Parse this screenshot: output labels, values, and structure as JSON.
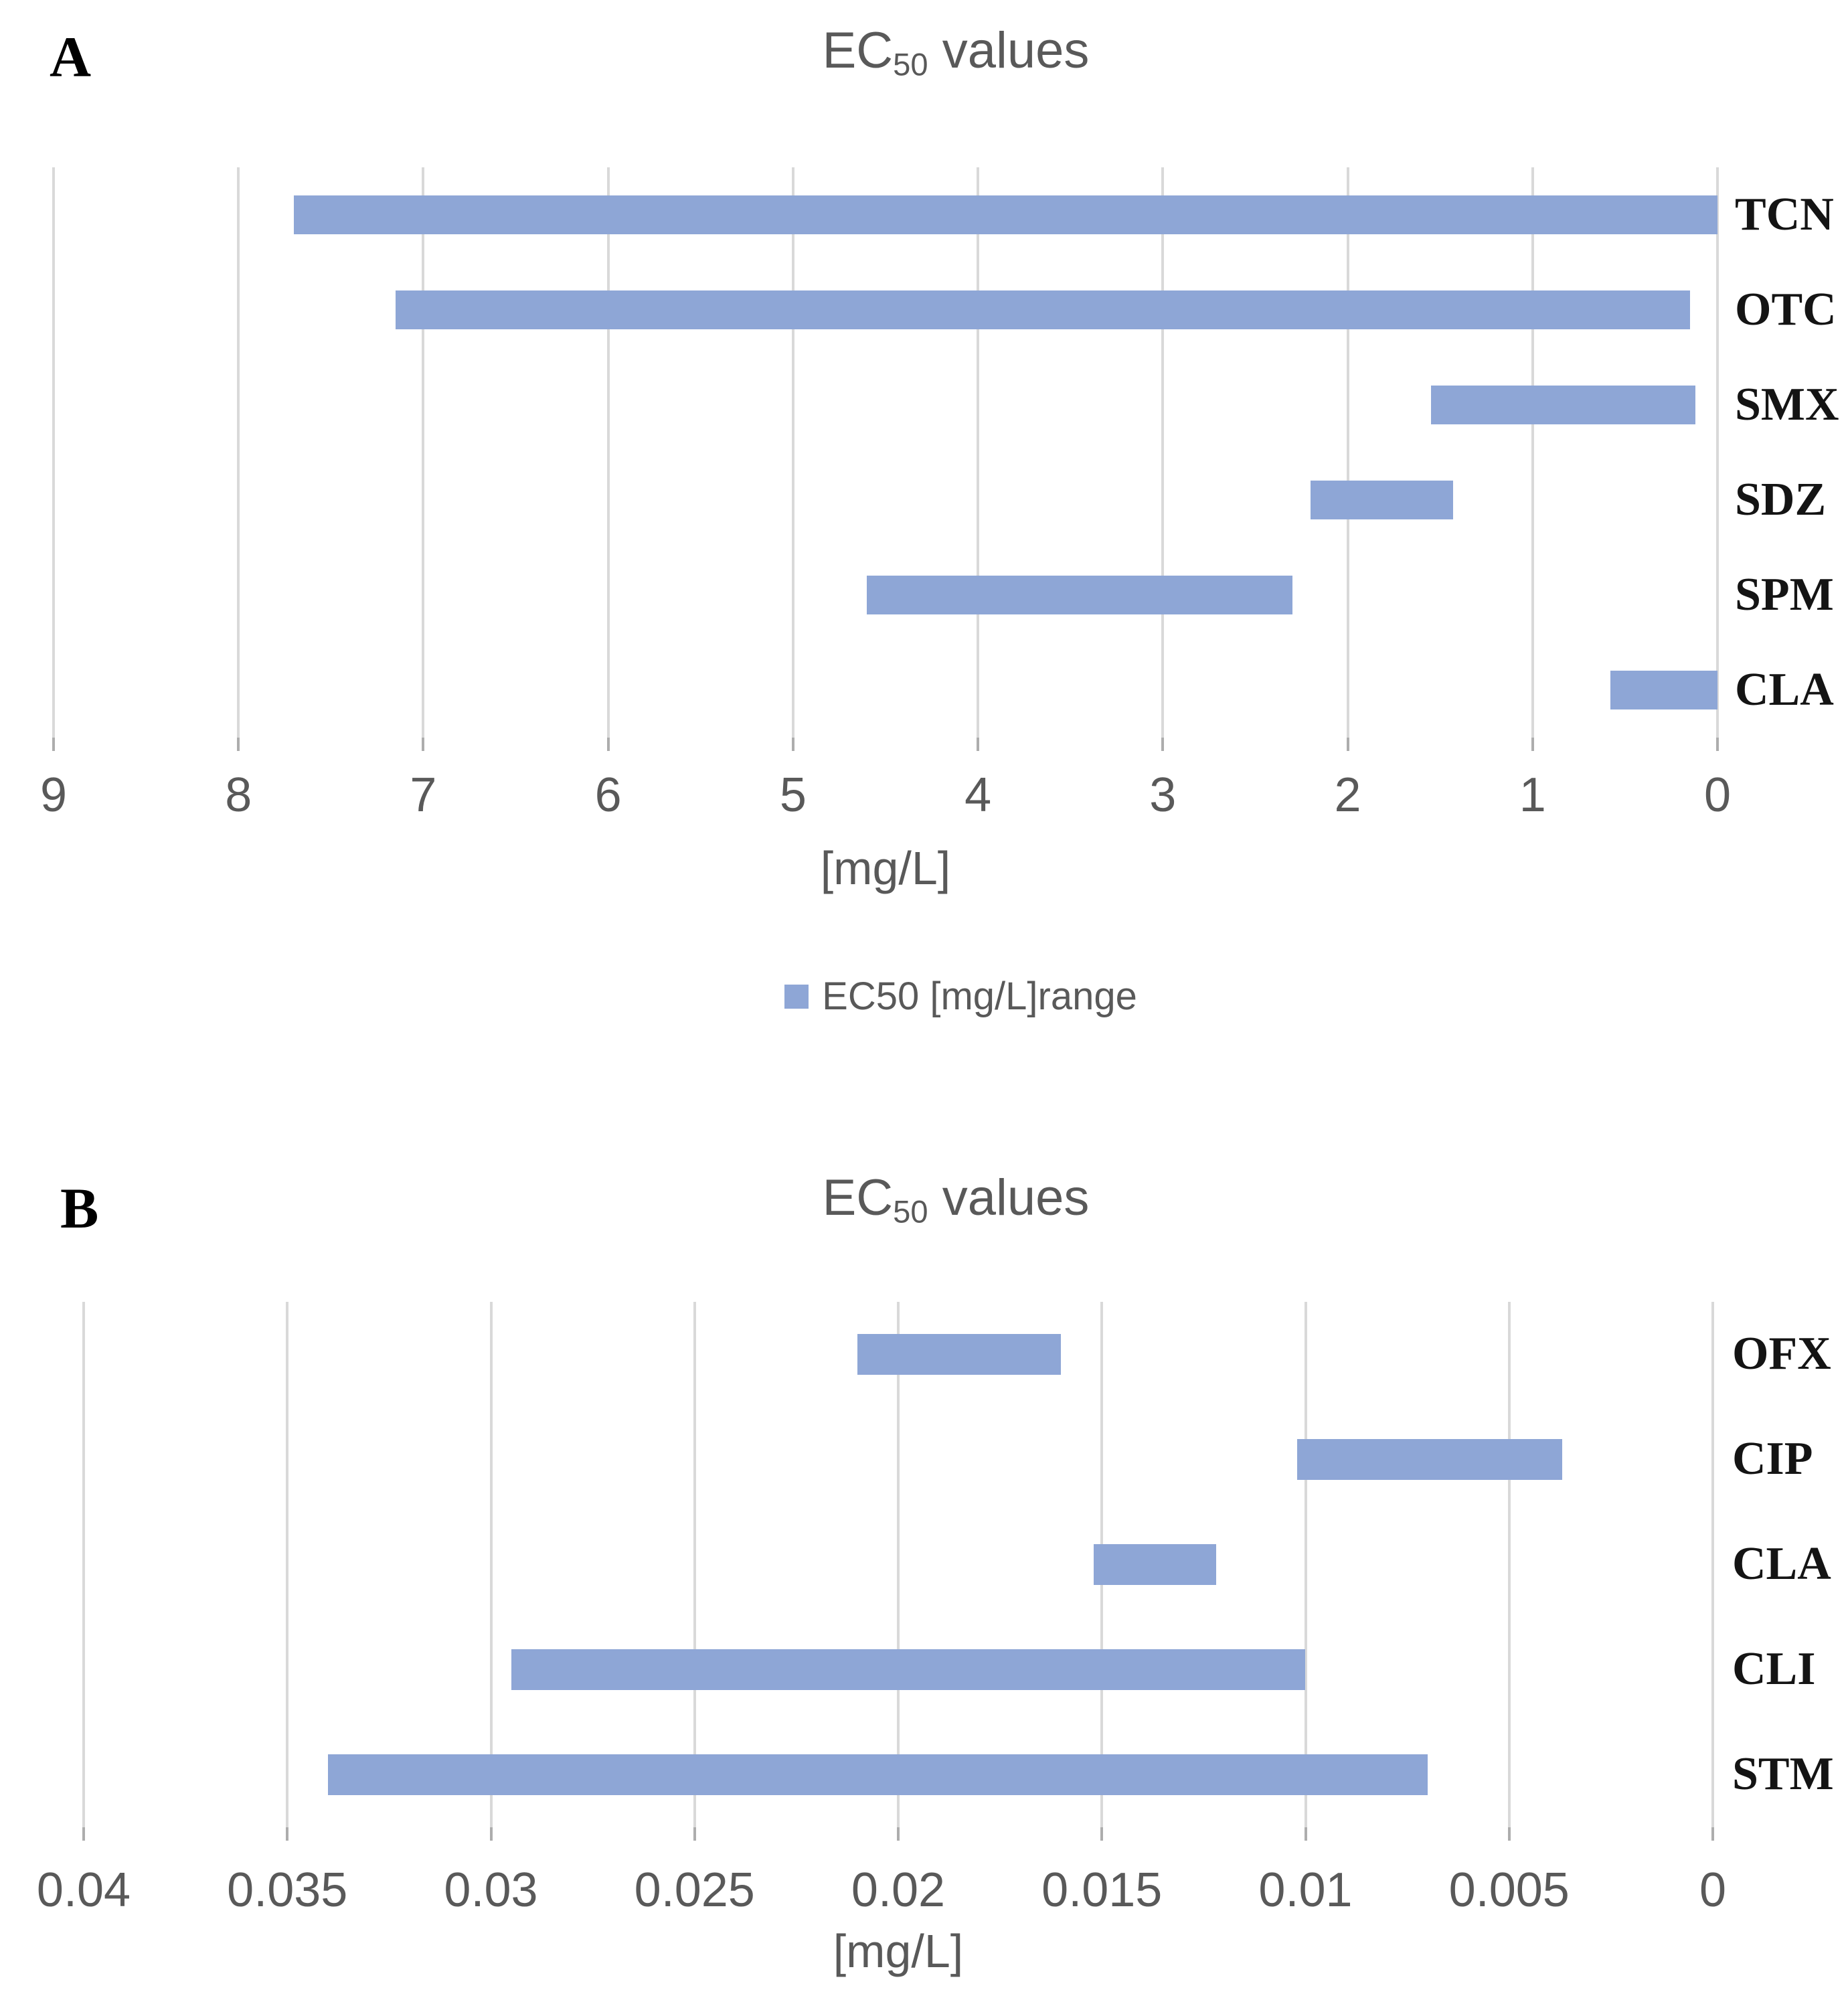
{
  "figure": {
    "background": "#ffffff",
    "bar_color": "#8EA6D6",
    "gridline_color": "#D9D9D9",
    "tick_mark_color": "#ADADAD",
    "axis_text_color": "#595959",
    "category_text_color": "#141414"
  },
  "chart_data": [
    {
      "type": "bar",
      "subtype": "horizontal-floating-range",
      "panel_label": "A",
      "title": "EC50 values",
      "title_parts": {
        "prefix": "EC",
        "sub": "50",
        "suffix": " values"
      },
      "xlabel": "[mg/L]",
      "legend": {
        "swatch_color": "#8EA6D6",
        "label": "EC50 [mg/L]range",
        "position": "bottom-center"
      },
      "categories": [
        "TCN",
        "OTC",
        "SMX",
        "SDZ",
        "SPM",
        "CLA"
      ],
      "series": [
        {
          "name": "EC50 [mg/L]range",
          "ranges_mg_per_L": [
            [
              0,
              7.7
            ],
            [
              0.15,
              7.15
            ],
            [
              0.12,
              1.55
            ],
            [
              1.43,
              2.2
            ],
            [
              2.3,
              4.6
            ],
            [
              0,
              0.58
            ]
          ]
        }
      ],
      "axis": {
        "min": 0,
        "max": 9,
        "direction": "reversed (max at left, 0 at right)",
        "tick_labels": [
          "9",
          "8",
          "7",
          "6",
          "5",
          "4",
          "3",
          "2",
          "1",
          "0"
        ],
        "grid": true
      }
    },
    {
      "type": "bar",
      "subtype": "horizontal-floating-range",
      "panel_label": "B",
      "title": "EC50 values",
      "title_parts": {
        "prefix": "EC",
        "sub": "50",
        "suffix": " values"
      },
      "xlabel": "[mg/L]",
      "legend": null,
      "categories": [
        "OFX",
        "CIP",
        "CLA",
        "CLI",
        "STM"
      ],
      "series": [
        {
          "name": "EC50 [mg/L]range",
          "ranges_mg_per_L": [
            [
              0.016,
              0.021
            ],
            [
              0.0037,
              0.0102
            ],
            [
              0.0122,
              0.0152
            ],
            [
              0.01,
              0.0295
            ],
            [
              0.007,
              0.034
            ]
          ]
        }
      ],
      "axis": {
        "min": 0,
        "max": 0.04,
        "direction": "reversed (max at left, 0 at right)",
        "tick_labels": [
          "0.04",
          "0.035",
          "0.03",
          "0.025",
          "0.02",
          "0.015",
          "0.01",
          "0.005",
          "0"
        ],
        "grid": true
      }
    }
  ]
}
